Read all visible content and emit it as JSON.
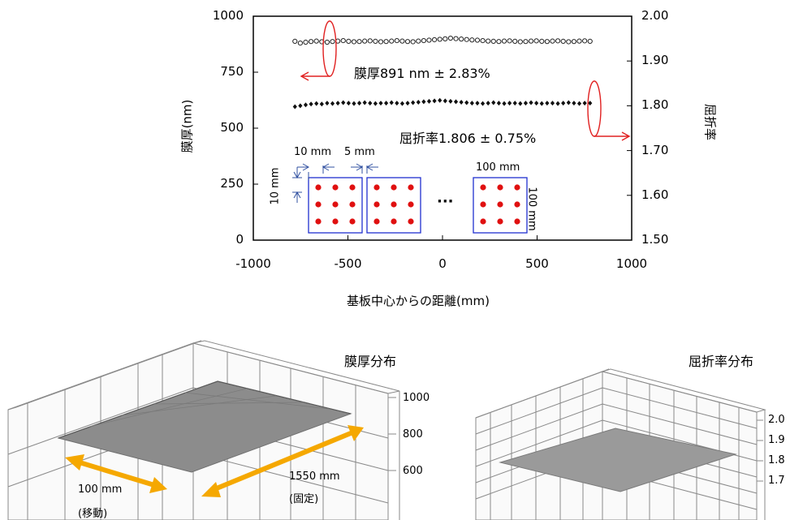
{
  "chart_data": [
    {
      "type": "scatter",
      "xlabel": "基板中心からの距離(mm)",
      "ylabel_left": "膜厚(nm)",
      "ylabel_right": "屈折率",
      "xlim": [
        -1000,
        1000
      ],
      "ylim_left": [
        0,
        1000
      ],
      "ylim_right": [
        1.5,
        2.0
      ],
      "x_ticks": [
        "-1000",
        "-500",
        "0",
        "500",
        "1000"
      ],
      "y_left_ticks": [
        "0",
        "250",
        "500",
        "750",
        "1000"
      ],
      "y_right_ticks": [
        "1.50",
        "1.60",
        "1.70",
        "1.80",
        "1.90",
        "2.00"
      ],
      "series": [
        {
          "axis": "left",
          "marker": "open-circle",
          "x_start": -780,
          "x_end": 780,
          "count": 56,
          "values": [
            888,
            880,
            884,
            887,
            889,
            886,
            884,
            887,
            889,
            891,
            888,
            886,
            887,
            889,
            890,
            888,
            886,
            887,
            889,
            891,
            889,
            887,
            886,
            889,
            891,
            893,
            895,
            897,
            899,
            902,
            900,
            898,
            896,
            894,
            893,
            891,
            889,
            888,
            887,
            889,
            890,
            888,
            886,
            887,
            889,
            890,
            888,
            887,
            889,
            890,
            888,
            886,
            887,
            889,
            890,
            888
          ]
        },
        {
          "axis": "right",
          "marker": "filled-diamond",
          "x_start": -780,
          "x_end": 780,
          "count": 56,
          "values": [
            1.798,
            1.8,
            1.802,
            1.804,
            1.805,
            1.804,
            1.806,
            1.805,
            1.806,
            1.807,
            1.806,
            1.805,
            1.806,
            1.807,
            1.806,
            1.805,
            1.806,
            1.806,
            1.807,
            1.806,
            1.805,
            1.806,
            1.807,
            1.808,
            1.809,
            1.81,
            1.811,
            1.812,
            1.811,
            1.81,
            1.809,
            1.808,
            1.807,
            1.806,
            1.806,
            1.805,
            1.806,
            1.807,
            1.806,
            1.805,
            1.806,
            1.806,
            1.805,
            1.806,
            1.807,
            1.806,
            1.805,
            1.806,
            1.806,
            1.805,
            1.806,
            1.807,
            1.806,
            1.805,
            1.806,
            1.806
          ]
        }
      ],
      "annotations": {
        "thickness": "膜厚891 nm ± 2.83%",
        "index": "屈折率1.806 ± 0.75%",
        "dim_10mm_top": "10 mm",
        "dim_5mm": "5 mm",
        "dim_10mm_side": "10 mm",
        "dim_100mm_top": "100 mm",
        "dim_100mm_side": "100 mm",
        "ellipsis": "···"
      }
    },
    {
      "type": "surface",
      "title": "膜厚分布",
      "z_ticks": [
        "1000",
        "800",
        "600"
      ],
      "annotations": {
        "len1": "100 mm",
        "len1_note": "(移動)",
        "len2": "1550 mm",
        "len2_note": "(固定)"
      }
    },
    {
      "type": "surface",
      "title": "屈折率分布",
      "z_ticks": [
        "2.0",
        "1.9",
        "1.8",
        "1.7"
      ]
    }
  ]
}
